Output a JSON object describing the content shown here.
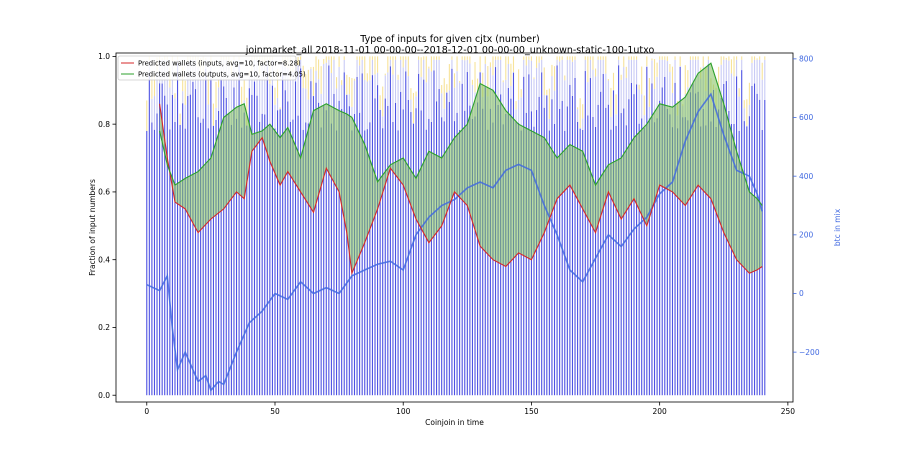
{
  "chart_data": {
    "type": "bar",
    "title": "Type of inputs for given cjtx (number)",
    "subtitle": "joinmarket_all 2018-11-01 00-00-00--2018-12-01 00-00-00_unknown-static-100-1utxo",
    "xlabel": "Coinjoin in time",
    "ylabel": "Fraction of input numbers",
    "ylabel_right": "btc in mix",
    "xlim": [
      -12,
      252
    ],
    "ylim": [
      -0.02,
      1.01
    ],
    "ylim_right": [
      -370,
      820
    ],
    "x_ticks": [
      0,
      50,
      100,
      150,
      200,
      250
    ],
    "y_ticks": [
      0.0,
      0.2,
      0.4,
      0.6,
      0.8,
      1.0
    ],
    "y_ticks_right": [
      -200,
      0,
      200,
      400,
      600,
      800
    ],
    "n_bars": 242,
    "grid": false,
    "legend_position": "top-left",
    "colors": {
      "bar_main": "#3b3fe0",
      "bar_light": "#c9cbf5",
      "bar_top": "#f7e39a",
      "line_inputs": "#d62728",
      "line_outputs": "#2ca02c",
      "fill": "#7fbf5a",
      "btc_line": "#4169e1",
      "right_axis": "#4169e1"
    },
    "legend": [
      "Predicted wallets (inputs, avg=10, factor=8.28)",
      "Predicted wallets (outputs, avg=10, factor=4.05)"
    ],
    "series": [
      {
        "name": "Predicted wallets (inputs, avg=10, factor=8.28)",
        "x": [
          5,
          8,
          11,
          15,
          20,
          25,
          30,
          35,
          38,
          41,
          45,
          48,
          52,
          55,
          60,
          65,
          70,
          75,
          78,
          80,
          85,
          90,
          95,
          100,
          105,
          110,
          115,
          120,
          125,
          130,
          135,
          140,
          145,
          150,
          155,
          160,
          165,
          170,
          175,
          180,
          185,
          190,
          195,
          200,
          205,
          210,
          215,
          220,
          225,
          230,
          235,
          238,
          240
        ],
        "y": [
          0.86,
          0.7,
          0.57,
          0.55,
          0.48,
          0.52,
          0.55,
          0.6,
          0.58,
          0.72,
          0.76,
          0.69,
          0.62,
          0.66,
          0.6,
          0.54,
          0.67,
          0.6,
          0.48,
          0.36,
          0.45,
          0.55,
          0.67,
          0.62,
          0.52,
          0.45,
          0.5,
          0.6,
          0.56,
          0.44,
          0.4,
          0.38,
          0.42,
          0.4,
          0.48,
          0.58,
          0.62,
          0.55,
          0.48,
          0.6,
          0.52,
          0.58,
          0.5,
          0.62,
          0.6,
          0.56,
          0.62,
          0.58,
          0.48,
          0.4,
          0.36,
          0.37,
          0.38
        ]
      },
      {
        "name": "Predicted wallets (outputs, avg=10, factor=4.05)",
        "x": [
          5,
          8,
          11,
          15,
          20,
          25,
          30,
          35,
          38,
          41,
          45,
          48,
          52,
          55,
          60,
          65,
          70,
          75,
          78,
          80,
          85,
          90,
          95,
          100,
          105,
          110,
          115,
          120,
          125,
          130,
          135,
          140,
          145,
          150,
          155,
          160,
          165,
          170,
          175,
          180,
          185,
          190,
          195,
          200,
          205,
          210,
          215,
          220,
          225,
          230,
          235,
          238,
          240
        ],
        "y": [
          0.78,
          0.68,
          0.62,
          0.64,
          0.66,
          0.7,
          0.82,
          0.85,
          0.86,
          0.77,
          0.78,
          0.8,
          0.76,
          0.79,
          0.7,
          0.84,
          0.86,
          0.84,
          0.83,
          0.82,
          0.74,
          0.63,
          0.68,
          0.7,
          0.64,
          0.72,
          0.7,
          0.76,
          0.8,
          0.92,
          0.9,
          0.84,
          0.8,
          0.78,
          0.76,
          0.7,
          0.74,
          0.72,
          0.62,
          0.68,
          0.7,
          0.76,
          0.8,
          0.86,
          0.85,
          0.88,
          0.95,
          0.98,
          0.86,
          0.72,
          0.6,
          0.58,
          0.56
        ]
      },
      {
        "name": "btc in mix",
        "x": [
          0,
          5,
          8,
          10,
          12,
          15,
          18,
          20,
          23,
          25,
          28,
          30,
          35,
          40,
          45,
          50,
          55,
          60,
          65,
          70,
          75,
          80,
          85,
          90,
          95,
          100,
          105,
          110,
          115,
          120,
          125,
          130,
          135,
          140,
          145,
          150,
          155,
          160,
          165,
          170,
          175,
          180,
          185,
          190,
          195,
          200,
          205,
          210,
          215,
          220,
          225,
          230,
          235,
          238,
          240
        ],
        "y": [
          30,
          10,
          60,
          -120,
          -260,
          -200,
          -260,
          -300,
          -280,
          -330,
          -300,
          -310,
          -200,
          -100,
          -60,
          0,
          -20,
          40,
          0,
          20,
          0,
          60,
          80,
          100,
          110,
          80,
          200,
          260,
          300,
          320,
          360,
          380,
          360,
          420,
          440,
          420,
          300,
          200,
          80,
          40,
          120,
          200,
          160,
          220,
          260,
          340,
          380,
          520,
          620,
          680,
          540,
          420,
          400,
          340,
          280
        ]
      }
    ]
  }
}
